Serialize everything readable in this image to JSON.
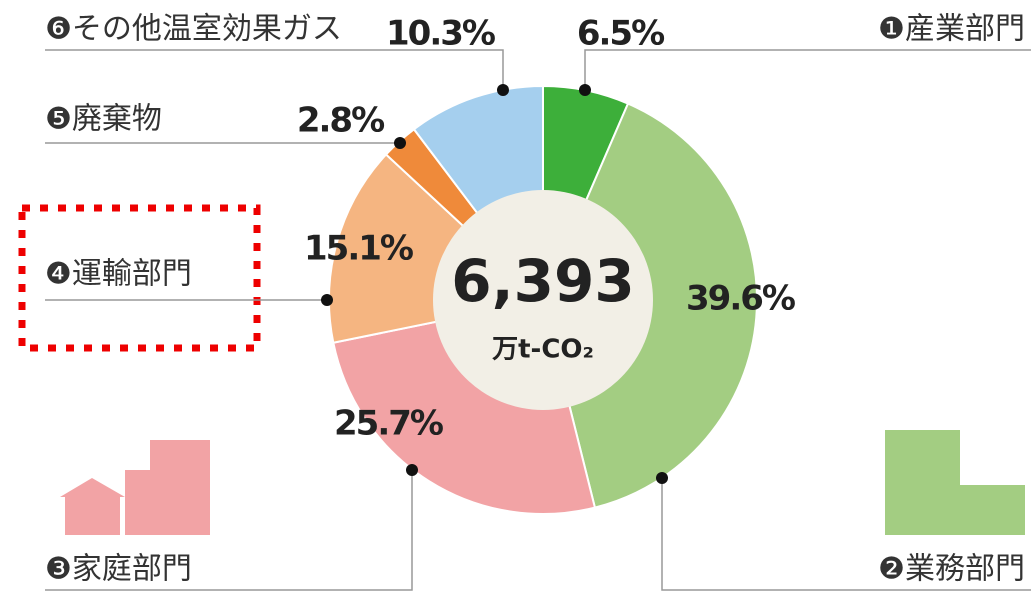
{
  "chart_data": {
    "type": "donut",
    "categories": [
      "❶産業部門",
      "❷業務部門",
      "❸家庭部門",
      "❹運輸部門",
      "❺廃棄物",
      "❻その他温室効果ガス"
    ],
    "values": [
      6.5,
      39.6,
      25.7,
      15.1,
      2.8,
      10.3
    ],
    "value_labels": [
      "6.5%",
      "39.6%",
      "25.7%",
      "15.1%",
      "2.8%",
      "10.3%"
    ],
    "colors": [
      "#3daf3a",
      "#a3cd82",
      "#f2a3a5",
      "#f5b581",
      "#ef8a3a",
      "#a5cfee"
    ],
    "center_value": "6,393",
    "center_unit": "万t-CO₂"
  }
}
